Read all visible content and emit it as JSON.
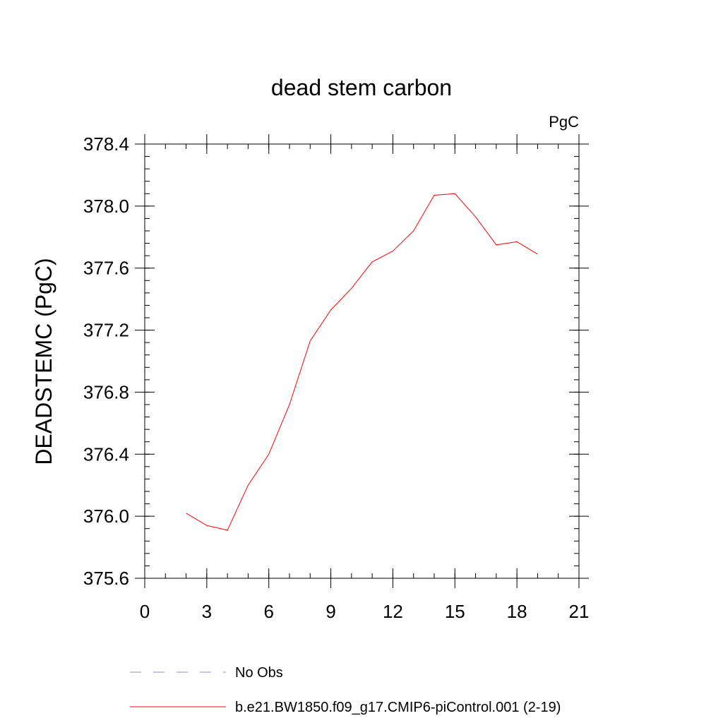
{
  "chart_data": {
    "type": "line",
    "title": "dead stem carbon",
    "units_label": "PgC",
    "ylabel": "DEADSTEMC  (PgC)",
    "xlabel": "",
    "xlim": [
      0,
      21
    ],
    "ylim": [
      375.6,
      378.4
    ],
    "x_ticks": [
      0,
      3,
      6,
      9,
      12,
      15,
      18,
      21
    ],
    "x_tick_labels": [
      "0",
      "3",
      "6",
      "9",
      "12",
      "15",
      "18",
      "21"
    ],
    "x_minor_step": 1,
    "y_ticks": [
      375.6,
      376.0,
      376.4,
      376.8,
      377.2,
      377.6,
      378.0,
      378.4
    ],
    "y_tick_labels": [
      "375.6",
      "376.0",
      "376.4",
      "376.8",
      "377.2",
      "377.6",
      "378.0",
      "378.4"
    ],
    "y_minor_step": 0.08,
    "grid": false,
    "series": [
      {
        "name": "b.e21.BW1850.f09_g17.CMIP6-piControl.001 (2-19)",
        "color": "#ff0000",
        "dash": "solid",
        "x": [
          2,
          3,
          4,
          5,
          6,
          7,
          8,
          9,
          10,
          11,
          12,
          13,
          14,
          15,
          16,
          17,
          18,
          19
        ],
        "values": [
          376.02,
          375.94,
          375.91,
          376.2,
          376.4,
          376.72,
          377.13,
          377.33,
          377.47,
          377.64,
          377.71,
          377.84,
          378.07,
          378.08,
          377.93,
          377.75,
          377.77,
          377.69
        ]
      }
    ],
    "legend": {
      "placement": "bottom-left",
      "entries": [
        {
          "label": "No Obs",
          "color": "#8888dd",
          "dash": "dashed"
        },
        {
          "label": "b.e21.BW1850.f09_g17.CMIP6-piControl.001 (2-19)",
          "color": "#ff0000",
          "dash": "solid"
        }
      ]
    }
  }
}
